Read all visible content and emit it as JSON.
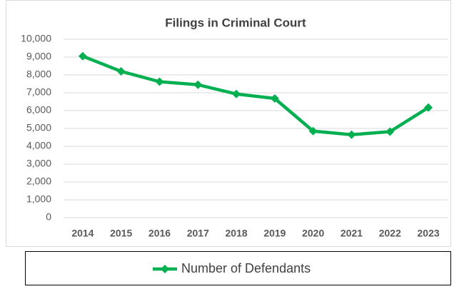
{
  "chart_data": {
    "type": "line",
    "title": "Filings in Criminal Court",
    "categories": [
      "2014",
      "2015",
      "2016",
      "2017",
      "2018",
      "2019",
      "2020",
      "2021",
      "2022",
      "2023"
    ],
    "series": [
      {
        "name": "Number of Defendants",
        "color": "#00b050",
        "values": [
          9050,
          8200,
          7620,
          7450,
          6930,
          6680,
          4850,
          4650,
          4820,
          6170
        ]
      }
    ],
    "ylim": [
      0,
      10000
    ],
    "yticks": [
      0,
      {
        "value": 1000,
        "label": "1,000"
      },
      {
        "value": 2000,
        "label": "2,000"
      },
      {
        "value": 3000,
        "label": "3,000"
      },
      {
        "value": 4000,
        "label": "4,000"
      },
      {
        "value": 5000,
        "label": "5,000"
      },
      {
        "value": 6000,
        "label": "6,000"
      },
      {
        "value": 7000,
        "label": "7,000"
      },
      {
        "value": 8000,
        "label": "8,000"
      },
      {
        "value": 9000,
        "label": "9,000"
      },
      {
        "value": 10000,
        "label": "10,000"
      }
    ],
    "grid": true,
    "legend": "bottom"
  }
}
